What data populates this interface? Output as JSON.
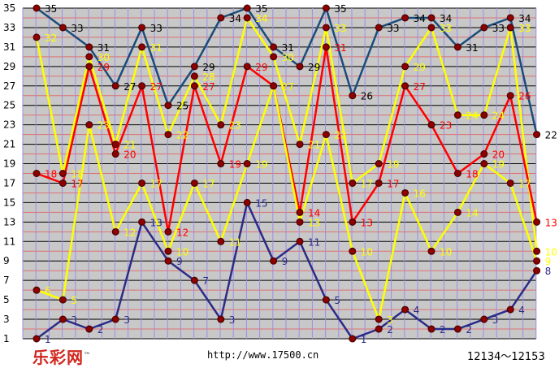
{
  "footer": {
    "logo": "乐彩网",
    "logo_mark": "™",
    "url": "http://www.17500.cn",
    "issue_range": "12134～12153"
  },
  "colors": {
    "background": "#c8c8c8",
    "h_grid_red": "#e07070",
    "h_grid_black": "#000000",
    "v_grid": "#9a8ee8",
    "marker": "#8b0000"
  },
  "chart_data": {
    "type": "line",
    "x": [
      1,
      2,
      3,
      4,
      5,
      6,
      7,
      8,
      9,
      10,
      11,
      12,
      13,
      14,
      15,
      16,
      17,
      18,
      19,
      20
    ],
    "ylim": [
      1,
      35
    ],
    "yticks": [
      1,
      3,
      5,
      7,
      9,
      11,
      13,
      15,
      17,
      19,
      21,
      23,
      25,
      27,
      29,
      31,
      33,
      35
    ],
    "grid": true,
    "series": [
      {
        "color": "#1a4d7a",
        "label_color": "#000000",
        "values": [
          35,
          33,
          31,
          27,
          33,
          25,
          29,
          34,
          35,
          31,
          29,
          35,
          26,
          33,
          34,
          34,
          31,
          33,
          34,
          22
        ]
      },
      {
        "color": "#ffff00",
        "label_color": "#ffff00",
        "values": [
          32,
          18,
          30,
          21,
          31,
          22,
          28,
          23,
          34,
          30,
          21,
          33,
          17,
          19,
          29,
          33,
          24,
          24,
          33,
          10
        ]
      },
      {
        "color": "#ff0000",
        "label_color": "#ff0000",
        "values": [
          18,
          17,
          29,
          20,
          27,
          12,
          27,
          19,
          29,
          27,
          14,
          31,
          13,
          17,
          27,
          23,
          18,
          20,
          26,
          13
        ]
      },
      {
        "color": "#ffff00",
        "label_color": "#ffff00",
        "values": [
          6,
          5,
          23,
          12,
          17,
          10,
          17,
          11,
          19,
          27,
          13,
          22,
          10,
          3,
          16,
          10,
          14,
          19,
          17,
          9
        ]
      },
      {
        "color": "#2b2b8a",
        "label_color": "#2b2b8a",
        "values": [
          1,
          3,
          2,
          3,
          13,
          9,
          7,
          3,
          15,
          9,
          11,
          5,
          1,
          2,
          4,
          2,
          2,
          3,
          4,
          8
        ]
      }
    ]
  }
}
